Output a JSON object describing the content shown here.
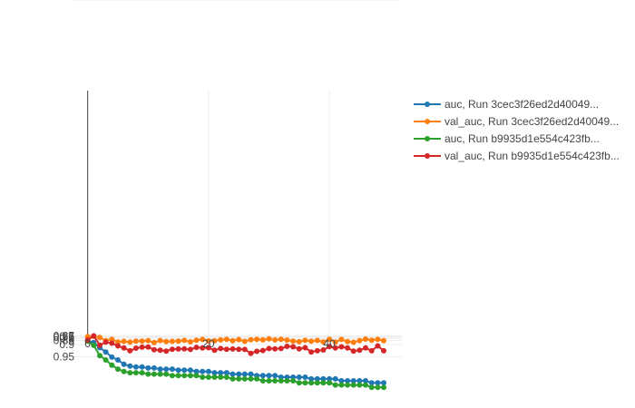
{
  "chart_data": {
    "type": "line",
    "title": "",
    "xlabel": "",
    "ylabel": "",
    "xlim": [
      -2.5,
      52
    ],
    "ylim": [
      0.6,
      1.005
    ],
    "y_scale": "reciprocal",
    "grid": true,
    "legend_position": "right",
    "x_ticks": [
      0,
      20,
      40
    ],
    "x_tick_labels": [
      "0",
      "20",
      "40"
    ],
    "y_ticks": [
      0.65,
      0.7,
      0.75,
      0.8,
      0.85,
      0.9,
      0.95,
      1
    ],
    "y_tick_labels": [
      "0.65",
      "0.7",
      "0.75",
      "0.8",
      "0.85",
      "0.9",
      "0.95",
      "1"
    ],
    "series": [
      {
        "name": "auc, Run 3cec3f26ed2d40049...",
        "color": "#1f77b4",
        "values": [
          0.854,
          0.881,
          0.921,
          0.938,
          0.951,
          0.956,
          0.962,
          0.964,
          0.965,
          0.965,
          0.966,
          0.966,
          0.967,
          0.967,
          0.967,
          0.968,
          0.968,
          0.968,
          0.969,
          0.969,
          0.969,
          0.97,
          0.97,
          0.97,
          0.971,
          0.971,
          0.971,
          0.971,
          0.972,
          0.972,
          0.972,
          0.972,
          0.973,
          0.973,
          0.973,
          0.973,
          0.973,
          0.974,
          0.974,
          0.974,
          0.974,
          0.974,
          0.975,
          0.975,
          0.975,
          0.975,
          0.975,
          0.976,
          0.976,
          0.976
        ]
      },
      {
        "name": "val_auc, Run 3cec3f26ed2d40049...",
        "color": "#ff7f0e",
        "values": [
          0.714,
          0.69,
          0.758,
          0.853,
          0.824,
          0.874,
          0.864,
          0.876,
          0.862,
          0.86,
          0.854,
          0.881,
          0.85,
          0.868,
          0.865,
          0.862,
          0.848,
          0.871,
          0.845,
          0.828,
          0.857,
          0.856,
          0.838,
          0.826,
          0.856,
          0.83,
          0.864,
          0.833,
          0.822,
          0.839,
          0.814,
          0.838,
          0.826,
          0.842,
          0.86,
          0.87,
          0.847,
          0.863,
          0.849,
          0.872,
          0.825,
          0.875,
          0.827,
          0.868,
          0.877,
          0.853,
          0.818,
          0.844,
          0.826,
          0.852
        ]
      },
      {
        "name": "auc, Run b9935d1e554c423fb...",
        "color": "#2ca02c",
        "values": [
          0.861,
          0.906,
          0.948,
          0.956,
          0.963,
          0.967,
          0.969,
          0.97,
          0.97,
          0.97,
          0.971,
          0.971,
          0.971,
          0.971,
          0.972,
          0.972,
          0.972,
          0.972,
          0.972,
          0.973,
          0.973,
          0.973,
          0.973,
          0.973,
          0.974,
          0.974,
          0.974,
          0.974,
          0.974,
          0.975,
          0.975,
          0.975,
          0.975,
          0.975,
          0.975,
          0.976,
          0.976,
          0.976,
          0.976,
          0.976,
          0.976,
          0.977,
          0.977,
          0.977,
          0.977,
          0.977,
          0.977,
          0.978,
          0.978,
          0.978
        ]
      },
      {
        "name": "val_auc, Run b9935d1e554c423fb...",
        "color": "#d62728",
        "values": [
          0.84,
          0.646,
          0.905,
          0.876,
          0.887,
          0.91,
          0.922,
          0.934,
          0.923,
          0.918,
          0.917,
          0.93,
          0.932,
          0.935,
          0.928,
          0.927,
          0.926,
          0.929,
          0.919,
          0.922,
          0.921,
          0.932,
          0.925,
          0.928,
          0.927,
          0.928,
          0.929,
          0.942,
          0.936,
          0.933,
          0.925,
          0.926,
          0.925,
          0.913,
          0.916,
          0.926,
          0.921,
          0.938,
          0.934,
          0.931,
          0.914,
          0.922,
          0.916,
          0.922,
          0.935,
          0.932,
          0.922,
          0.934,
          0.91,
          0.934
        ]
      }
    ]
  }
}
